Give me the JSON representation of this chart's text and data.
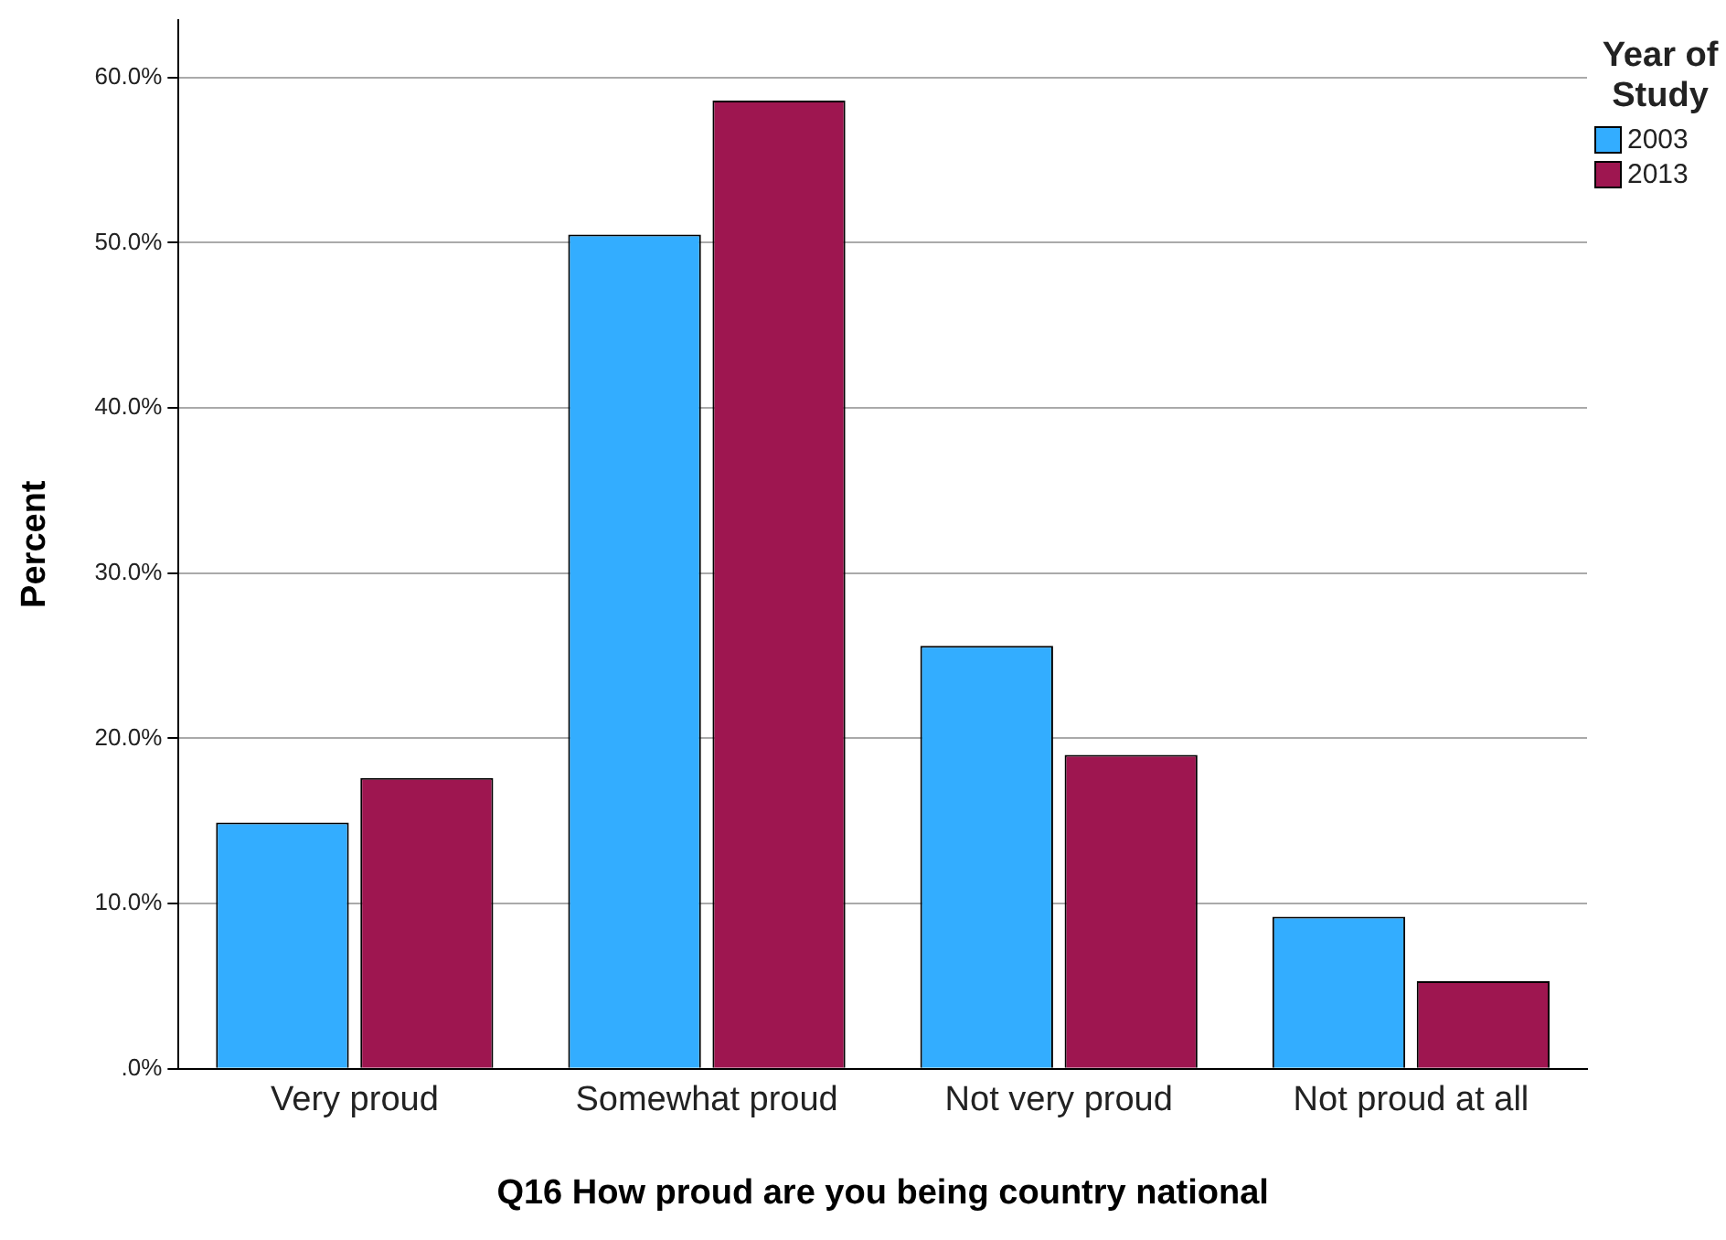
{
  "chart_data": {
    "type": "bar",
    "xlabel": "Q16 How proud are you being country national",
    "ylabel": "Percent",
    "legend_title": "Year of Study",
    "legend": "top right",
    "grid": "y",
    "categories": [
      "Very proud",
      "Somewhat proud",
      "Not very proud",
      "Not proud at all"
    ],
    "series": [
      {
        "name": "2003",
        "color": "#33adff",
        "values": [
          14.9,
          50.5,
          25.6,
          9.2
        ]
      },
      {
        "name": "2013",
        "color": "#9e1650",
        "values": [
          17.6,
          58.6,
          19.0,
          5.3
        ]
      }
    ],
    "ylim": [
      0,
      63.5
    ],
    "yticks": [
      {
        "value": 0,
        "label": ".0%"
      },
      {
        "value": 10,
        "label": "10.0%"
      },
      {
        "value": 20,
        "label": "20.0%"
      },
      {
        "value": 30,
        "label": "30.0%"
      },
      {
        "value": 40,
        "label": "40.0%"
      },
      {
        "value": 50,
        "label": "50.0%"
      },
      {
        "value": 60,
        "label": "60.0%"
      }
    ]
  }
}
